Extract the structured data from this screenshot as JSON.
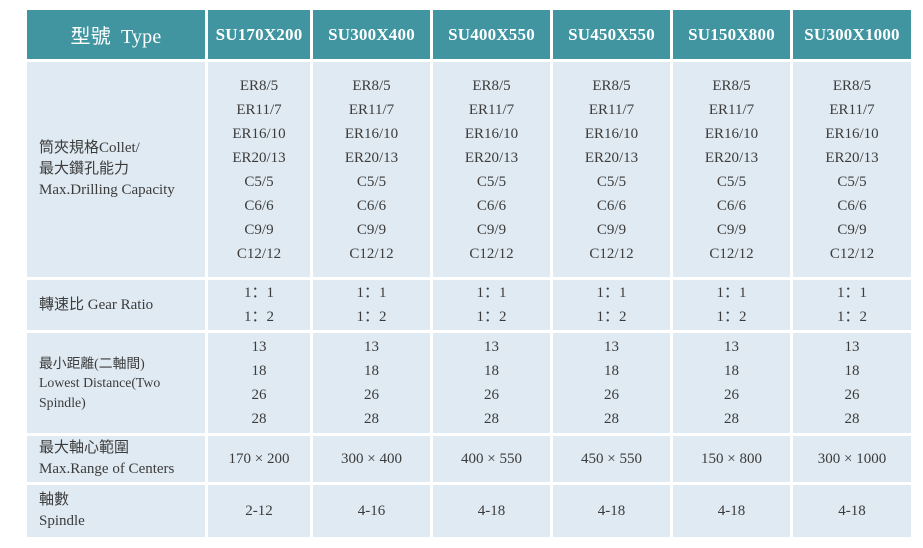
{
  "colors": {
    "header_bg": "#4095a1",
    "header_text": "#ffffff",
    "cell_bg": "#dfeaf2",
    "body_text": "#3c3c3c",
    "page_bg": "#ffffff"
  },
  "table": {
    "header": {
      "type_label_zh": "型號",
      "type_label_en": "Type",
      "models": [
        "SU170X200",
        "SU300X400",
        "SU400X550",
        "SU450X550",
        "SU150X800",
        "SU300X1000"
      ]
    },
    "rows": [
      {
        "id": "collet-max-drilling",
        "label": "筒夾規格Collet/\n最大鑽孔能力\nMax.Drilling Capacity",
        "values": [
          "ER8/5\nER11/7\nER16/10\nER20/13\nC5/5\nC6/6\nC9/9\nC12/12",
          "ER8/5\nER11/7\nER16/10\nER20/13\nC5/5\nC6/6\nC9/9\nC12/12",
          "ER8/5\nER11/7\nER16/10\nER20/13\nC5/5\nC6/6\nC9/9\nC12/12",
          "ER8/5\nER11/7\nER16/10\nER20/13\nC5/5\nC6/6\nC9/9\nC12/12",
          "ER8/5\nER11/7\nER16/10\nER20/13\nC5/5\nC6/6\nC9/9\nC12/12",
          "ER8/5\nER11/7\nER16/10\nER20/13\nC5/5\nC6/6\nC9/9\nC12/12"
        ]
      },
      {
        "id": "gear-ratio",
        "label": "轉速比  Gear Ratio",
        "values": [
          "1：1\n1：2",
          "1：1\n1：2",
          "1：1\n1：2",
          "1：1\n1：2",
          "1：1\n1：2",
          "1：1\n1：2"
        ]
      },
      {
        "id": "lowest-distance",
        "label": "最小距離(二軸間)\nLowest Distance(Two Spindle)",
        "values": [
          "13\n18\n26\n28",
          "13\n18\n26\n28",
          "13\n18\n26\n28",
          "13\n18\n26\n28",
          "13\n18\n26\n28",
          "13\n18\n26\n28"
        ]
      },
      {
        "id": "max-range-of-centers",
        "label": "最大軸心範圍\nMax.Range of Centers",
        "values": [
          "170 × 200",
          "300 × 400",
          "400 × 550",
          "450 × 550",
          "150 × 800",
          "300 × 1000"
        ]
      },
      {
        "id": "spindle",
        "label": "軸數\nSpindle",
        "values": [
          "2-12",
          "4-16",
          "4-18",
          "4-18",
          "4-18",
          "4-18"
        ]
      }
    ]
  }
}
